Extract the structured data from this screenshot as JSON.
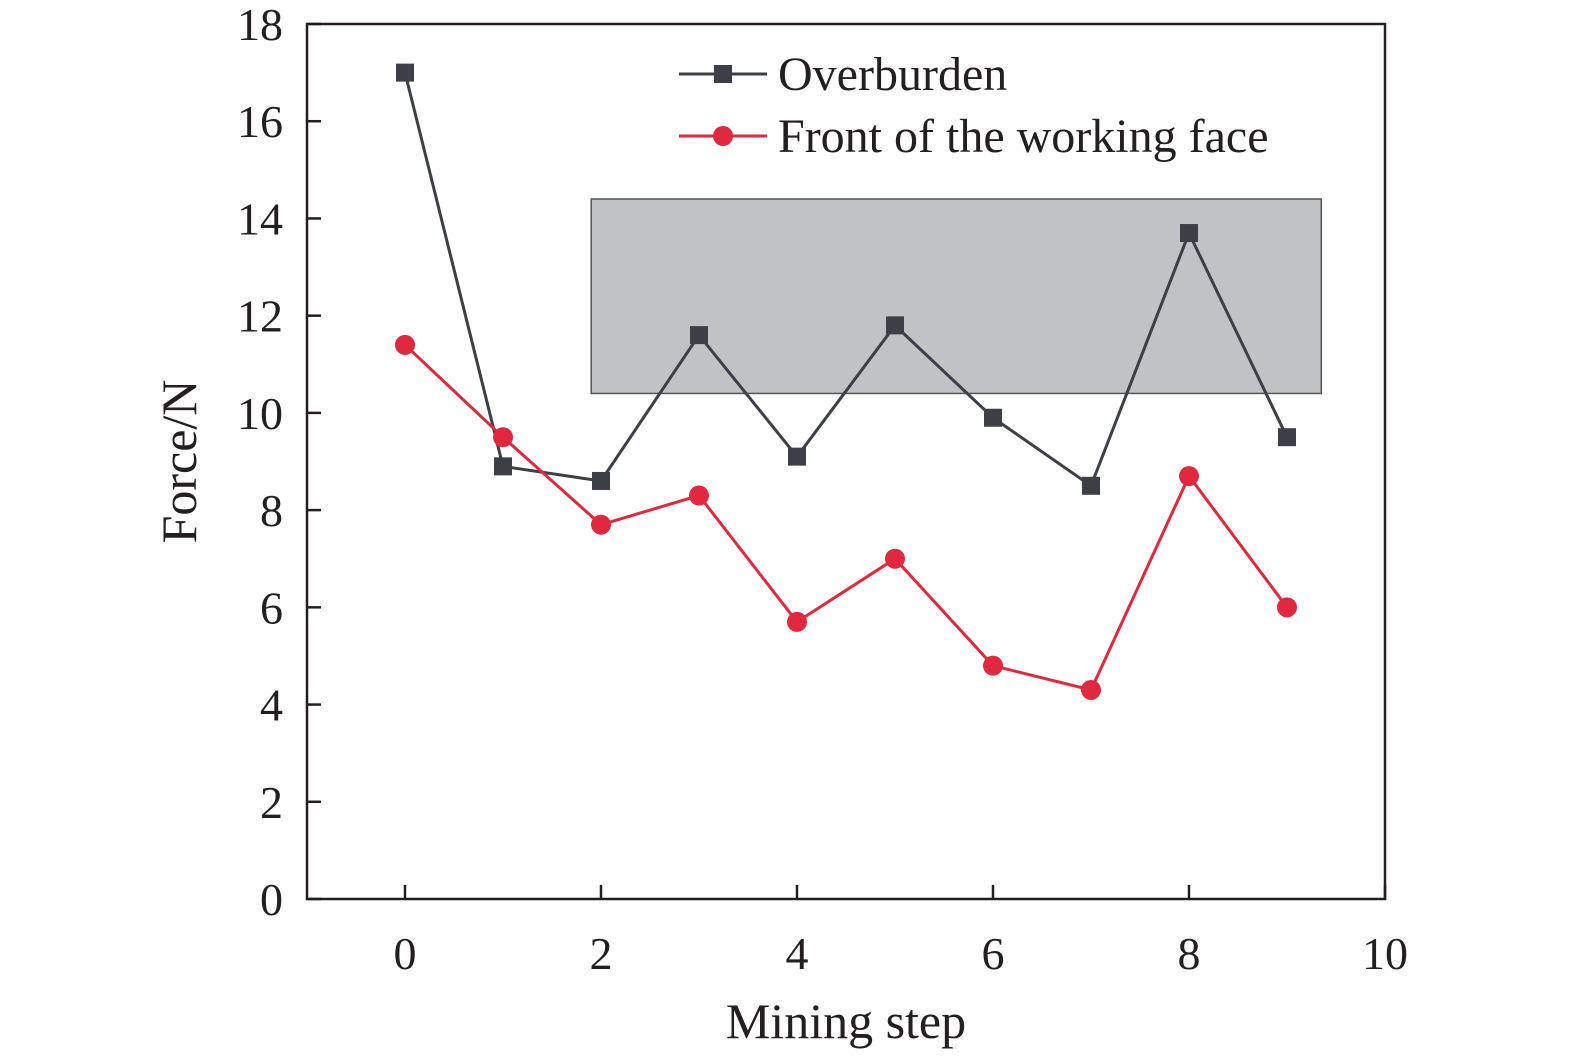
{
  "chart_data": {
    "type": "line",
    "title": "",
    "xlabel": "Mining step",
    "ylabel": "Force/N",
    "xlim": [
      -1,
      10
    ],
    "ylim": [
      0,
      18
    ],
    "xticks": [
      0,
      2,
      4,
      6,
      8,
      10
    ],
    "yticks": [
      0,
      2,
      4,
      6,
      8,
      10,
      12,
      14,
      16,
      18
    ],
    "grid": false,
    "legend_position": "top-right",
    "highlight_region": {
      "x_range": [
        1.9,
        9.35
      ],
      "y_range": [
        10.4,
        14.4
      ],
      "color": "#c1c2c4"
    },
    "series": [
      {
        "name": "Overburden",
        "marker": "square",
        "color": "#3c3f45",
        "x": [
          0,
          1,
          2,
          3,
          4,
          5,
          6,
          7,
          8,
          9
        ],
        "y": [
          17.0,
          8.9,
          8.6,
          11.6,
          9.1,
          11.8,
          9.9,
          8.5,
          13.7,
          9.5
        ]
      },
      {
        "name": "Front of the working face",
        "marker": "circle",
        "color": "#e0283e",
        "x": [
          0,
          1,
          2,
          3,
          4,
          5,
          6,
          7,
          8,
          9
        ],
        "y": [
          11.4,
          9.5,
          7.7,
          8.3,
          5.7,
          7.0,
          4.8,
          4.3,
          8.7,
          6.0
        ]
      }
    ]
  }
}
